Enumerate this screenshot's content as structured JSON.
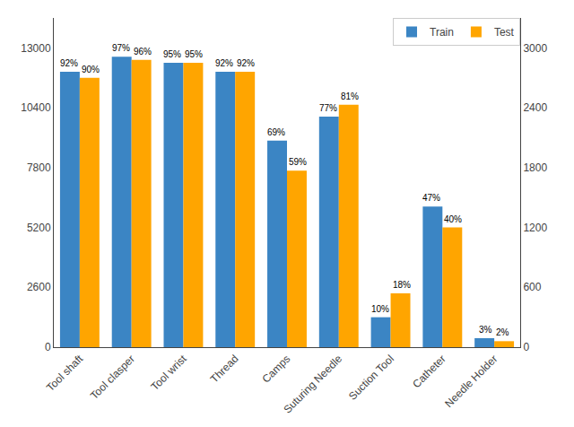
{
  "chart_data": {
    "type": "bar",
    "categories": [
      "Tool shaft",
      "Tool clasper",
      "Tool wrist",
      "Thread",
      "Camps",
      "Suturing Needle",
      "Suction Tool",
      "Catheter",
      "Needle Holder"
    ],
    "series": [
      {
        "name": "Train",
        "color": "#3b85c4",
        "values": [
          11960,
          12610,
          12350,
          11960,
          8970,
          10010,
          1300,
          6110,
          390
        ],
        "annotations": [
          "92%",
          "97%",
          "95%",
          "92%",
          "69%",
          "77%",
          "10%",
          "47%",
          "3%"
        ]
      },
      {
        "name": "Test",
        "color": "#ffa500",
        "values": [
          11700,
          12480,
          12350,
          11960,
          7670,
          10530,
          2340,
          5200,
          260
        ],
        "annotations": [
          "90%",
          "96%",
          "95%",
          "92%",
          "59%",
          "81%",
          "18%",
          "40%",
          "2%"
        ]
      }
    ],
    "ylim": [
      0,
      14300
    ],
    "yticks": [
      0,
      2600,
      5200,
      7800,
      10400,
      13000
    ],
    "y2lim": [
      0,
      3300
    ],
    "y2ticks": [
      0,
      600,
      1200,
      1800,
      2400,
      3000
    ],
    "legend": "upper right",
    "grid": false
  }
}
